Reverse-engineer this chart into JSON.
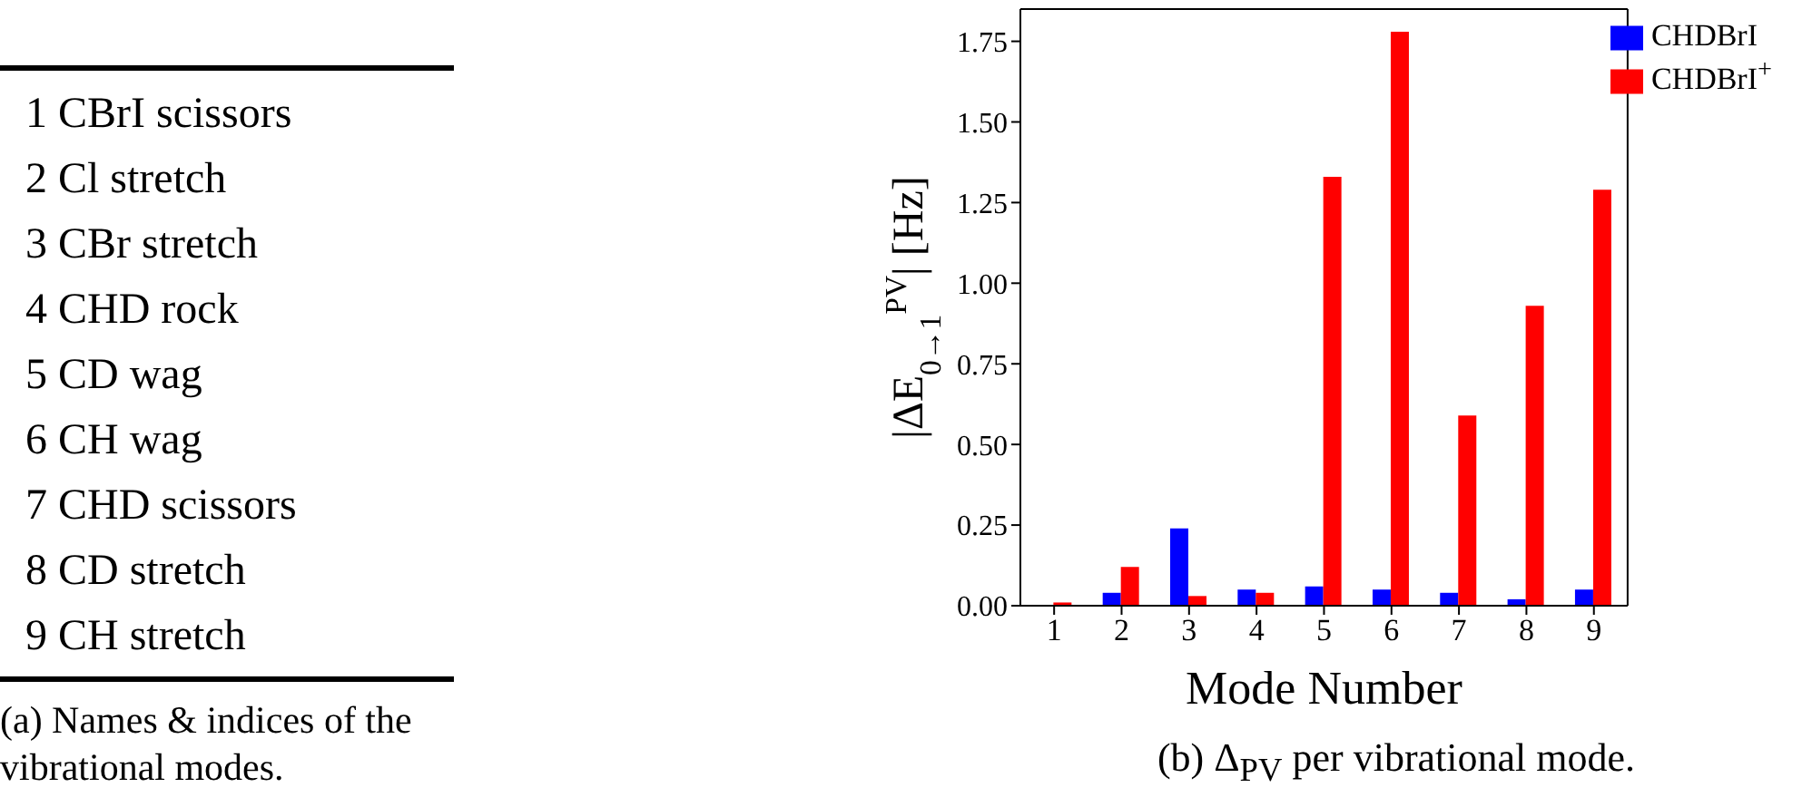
{
  "chart_data": [
    {
      "type": "other",
      "title": "(a) Names & indices of the vibrational modes.",
      "annotations": [
        "1 CBrI scissors",
        "2 Cl stretch",
        "3 CBr stretch",
        "4 CHD rock",
        "5 CD wag",
        "6 CH wag",
        "7 CHD scissors",
        "8 CD stretch",
        "9 CH stretch"
      ]
    },
    {
      "type": "bar",
      "title": "(b) Δ$_{PV}$ per vibrational mode.",
      "xlabel": "Mode Number",
      "ylabel": "|ΔE$_{0→1}$$^{PV}$| [Hz]",
      "categories": [
        "1",
        "2",
        "3",
        "4",
        "5",
        "6",
        "7",
        "8",
        "9"
      ],
      "series": [
        {
          "name": "CHDBrI",
          "color": "#0000ff",
          "values": [
            0.0,
            0.04,
            0.24,
            0.05,
            0.06,
            0.05,
            0.04,
            0.02,
            0.05
          ]
        },
        {
          "name": "CHDBrI$^{+}$",
          "color": "#ff0000",
          "values": [
            0.01,
            0.12,
            0.03,
            0.04,
            1.33,
            1.78,
            0.59,
            0.93,
            1.29
          ]
        }
      ],
      "ylim": [
        0,
        1.85
      ],
      "yticks": [
        {
          "value": 0,
          "label": "0.00"
        },
        {
          "value": 0.25,
          "label": "0.25"
        },
        {
          "value": 0.5,
          "label": "0.50"
        },
        {
          "value": 0.75,
          "label": "0.75"
        },
        {
          "value": 1,
          "label": "1.00"
        },
        {
          "value": 1.25,
          "label": "1.25"
        },
        {
          "value": 1.5,
          "label": "1.50"
        },
        {
          "value": 1.75,
          "label": "1.75"
        }
      ],
      "grid": false,
      "legend": "top right"
    }
  ]
}
